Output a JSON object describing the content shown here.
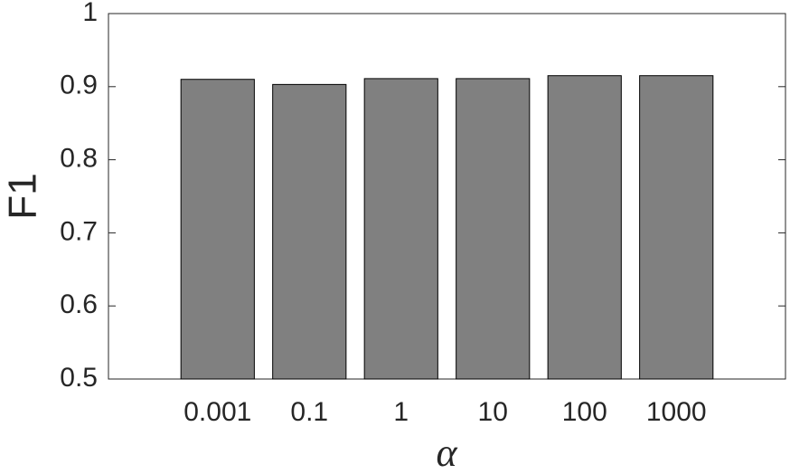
{
  "chart_data": {
    "type": "bar",
    "x_label": "α",
    "y_label": "F1",
    "categories": [
      "0.001",
      "0.1",
      "1",
      "10",
      "100",
      "1000"
    ],
    "values": [
      0.91,
      0.903,
      0.911,
      0.911,
      0.915,
      0.915
    ],
    "color": "#808080",
    "ylim": [
      0.5,
      1
    ],
    "yticks": [
      0.5,
      0.6,
      0.7,
      0.8,
      0.9,
      1
    ],
    "grid": false
  }
}
